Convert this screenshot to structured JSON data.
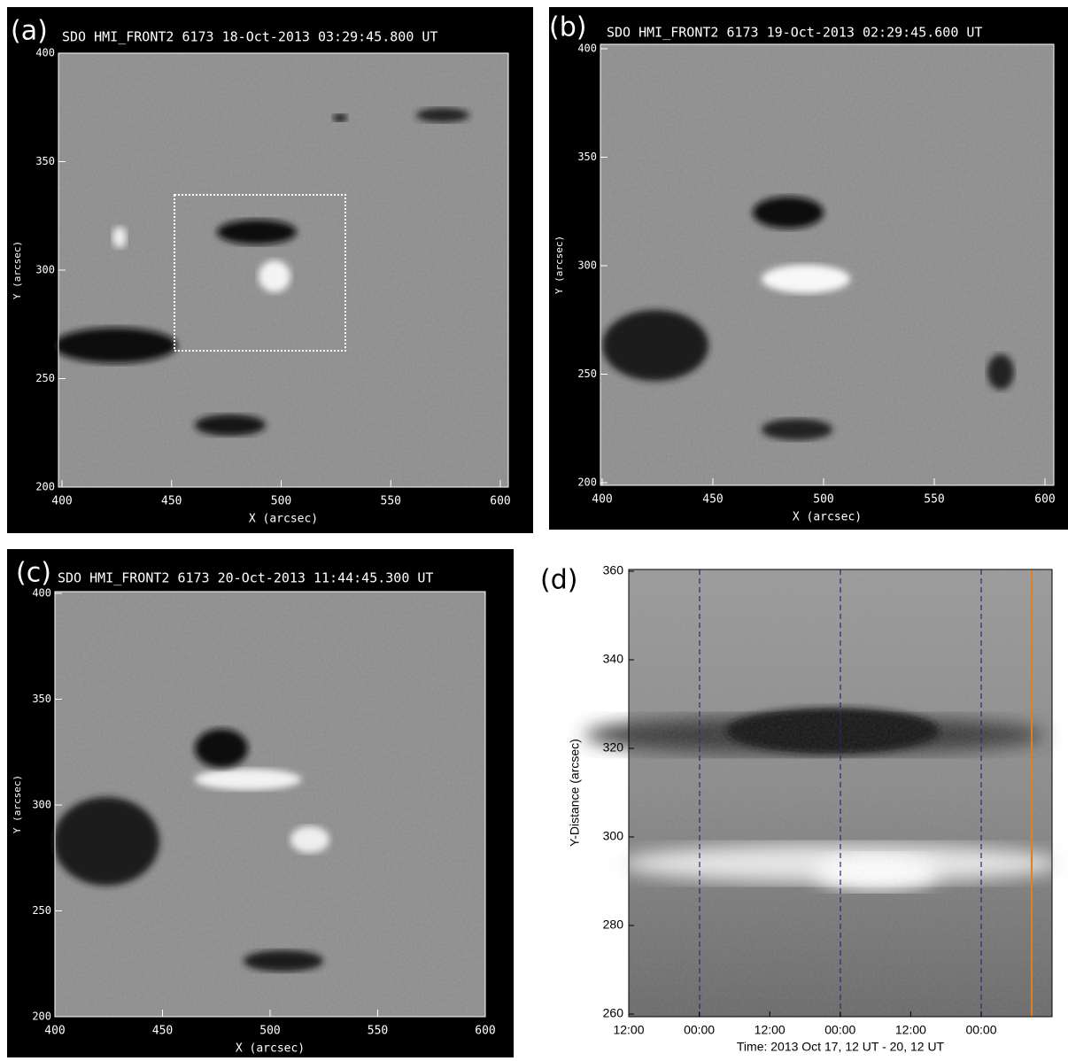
{
  "panels": [
    {
      "label": "(a)",
      "title": "SDO HMI_FRONT2 6173 18-Oct-2013 03:29:45.800 UT",
      "xlabel": "X (arcsec)",
      "ylabel": "Y (arcsec)",
      "xticks": [
        "400",
        "450",
        "500",
        "550",
        "600"
      ],
      "yticks": [
        "400",
        "350",
        "300",
        "250",
        "200"
      ]
    },
    {
      "label": "(b)",
      "title": "SDO HMI_FRONT2 6173 19-Oct-2013 02:29:45.600 UT",
      "xlabel": "X (arcsec)",
      "ylabel": "Y (arcsec)",
      "xticks": [
        "400",
        "450",
        "500",
        "550",
        "600"
      ],
      "yticks": [
        "400",
        "350",
        "300",
        "250",
        "200"
      ]
    },
    {
      "label": "(c)",
      "title": "SDO HMI_FRONT2 6173 20-Oct-2013 11:44:45.300 UT",
      "xlabel": "X (arcsec)",
      "ylabel": "Y (arcsec)",
      "xticks": [
        "400",
        "450",
        "500",
        "550",
        "600"
      ],
      "yticks": [
        "400",
        "350",
        "300",
        "250",
        "200"
      ]
    },
    {
      "label": "(d)",
      "xlabel": "Time: 2013 Oct 17, 12 UT - 20, 12 UT",
      "ylabel": "Y-Distance (arcsec)",
      "xticks": [
        "12:00",
        "00:00",
        "12:00",
        "00:00",
        "12:00",
        "00:00"
      ],
      "yticks": [
        "360",
        "340",
        "320",
        "300",
        "280",
        "260"
      ]
    }
  ]
}
